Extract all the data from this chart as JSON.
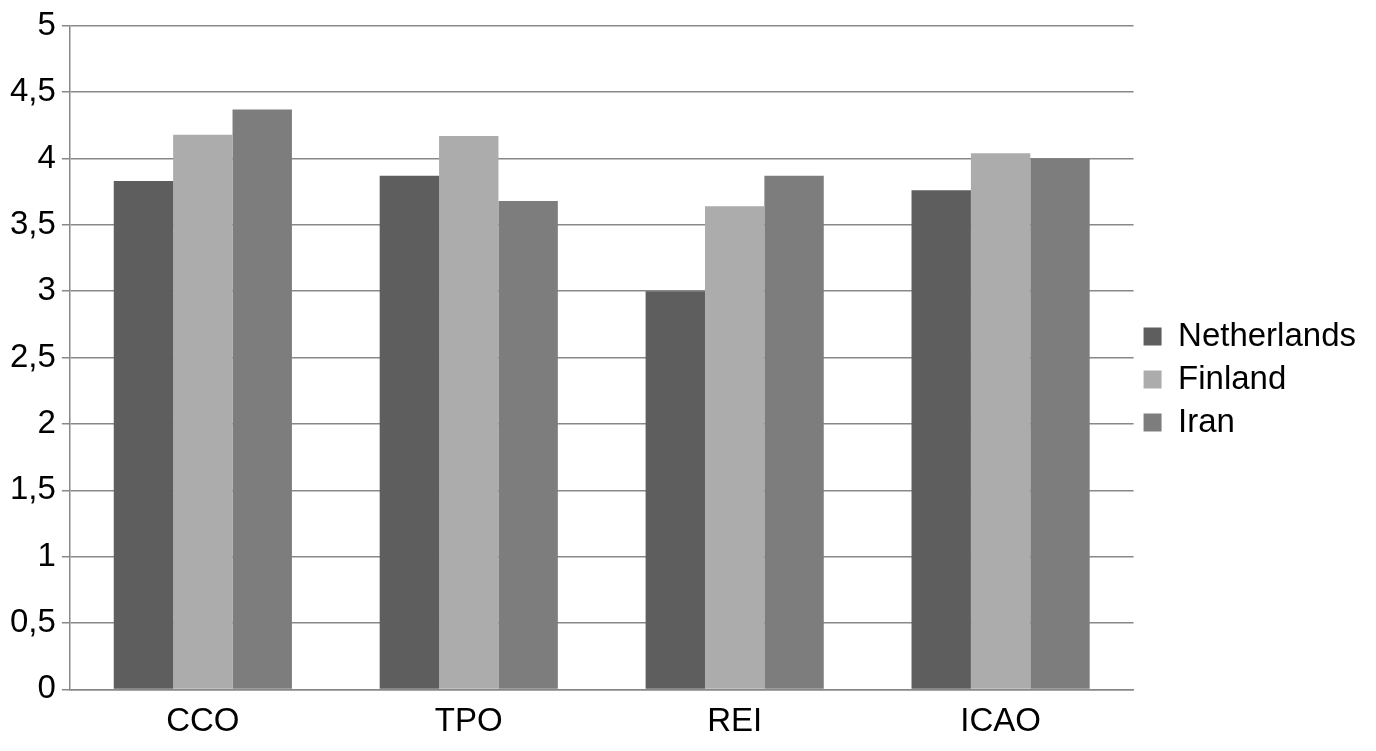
{
  "chart_data": {
    "type": "bar",
    "categories": [
      "CCO",
      "TPO",
      "REI",
      "ICAO"
    ],
    "series": [
      {
        "name": "Netherlands",
        "color": "#5e5e5e",
        "values": [
          3.83,
          3.87,
          3.0,
          3.76
        ]
      },
      {
        "name": "Finland",
        "color": "#acacac",
        "values": [
          4.18,
          4.17,
          3.64,
          4.04
        ]
      },
      {
        "name": "Iran",
        "color": "#7d7d7d",
        "values": [
          4.37,
          3.68,
          3.87,
          4.0
        ]
      }
    ],
    "ylim": [
      0,
      5
    ],
    "yticks": [
      0,
      {
        "value": 0.5,
        "label": "0,5"
      },
      1,
      {
        "value": 1.5,
        "label": "1,5"
      },
      2,
      {
        "value": 2.5,
        "label": "2,5"
      },
      3,
      {
        "value": 3.5,
        "label": "3,5"
      },
      4,
      {
        "value": 4.5,
        "label": "4,5"
      },
      5
    ],
    "grid": "y",
    "legend": "right"
  }
}
